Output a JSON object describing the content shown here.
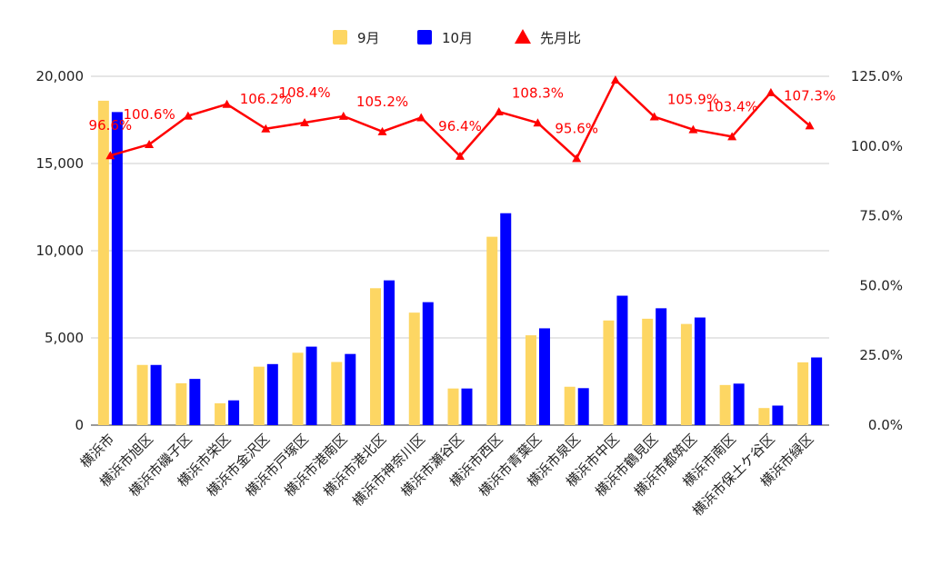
{
  "chart_data": {
    "type": "bar",
    "categories": [
      "横浜市",
      "横浜市旭区",
      "横浜市磯子区",
      "横浜市栄区",
      "横浜市金沢区",
      "横浜市戸塚区",
      "横浜市港南区",
      "横浜市港北区",
      "横浜市神奈川区",
      "横浜市瀬谷区",
      "横浜市西区",
      "横浜市青葉区",
      "横浜市泉区",
      "横浜市中区",
      "横浜市鶴見区",
      "横浜市都筑区",
      "横浜市南区",
      "横浜市保土ケ谷区",
      "横浜市緑区"
    ],
    "series": [
      {
        "name": "9月",
        "type": "bar",
        "axis": "left",
        "color": "#fdd663",
        "values": [
          18600,
          3450,
          2400,
          1250,
          3350,
          4150,
          3620,
          7850,
          6450,
          2100,
          10800,
          5150,
          2200,
          6000,
          6100,
          5800,
          2300,
          980,
          3600
        ]
      },
      {
        "name": "10月",
        "type": "bar",
        "axis": "left",
        "color": "#0000ff",
        "values": [
          17950,
          3450,
          2650,
          1420,
          3500,
          4500,
          4080,
          8300,
          7050,
          2100,
          12150,
          5550,
          2120,
          7420,
          6700,
          6170,
          2380,
          1120,
          3880
        ]
      },
      {
        "name": "先月比",
        "type": "line",
        "axis": "right",
        "color": "#ff0000",
        "values": [
          96.6,
          100.6,
          110.8,
          115.0,
          106.2,
          108.4,
          110.7,
          105.2,
          110.2,
          96.4,
          112.3,
          108.3,
          95.6,
          123.7,
          110.5,
          105.9,
          103.4,
          119.2,
          107.3
        ]
      }
    ],
    "data_labels": [
      {
        "index": 0,
        "text": "96.6%"
      },
      {
        "index": 1,
        "text": "100.6%"
      },
      {
        "index": 4,
        "text": "106.2%"
      },
      {
        "index": 5,
        "text": "108.4%"
      },
      {
        "index": 7,
        "text": "105.2%"
      },
      {
        "index": 9,
        "text": "96.4%"
      },
      {
        "index": 11,
        "text": "108.3%"
      },
      {
        "index": 12,
        "text": "95.6%"
      },
      {
        "index": 15,
        "text": "105.9%"
      },
      {
        "index": 16,
        "text": "103.4%"
      },
      {
        "index": 18,
        "text": "107.3%"
      }
    ],
    "y_left": {
      "min": 0,
      "max": 20000,
      "ticks": [
        0,
        5000,
        10000,
        15000,
        20000
      ],
      "tick_labels": [
        "0",
        "5,000",
        "10,000",
        "15,000",
        "20,000"
      ]
    },
    "y_right": {
      "min": 0,
      "max": 125,
      "ticks": [
        0,
        25,
        50,
        75,
        100,
        125
      ],
      "tick_labels": [
        "0.0%",
        "25.0%",
        "50.0%",
        "75.0%",
        "100.0%",
        "125.0%"
      ]
    },
    "grid": true,
    "legend_position": "top-center"
  }
}
